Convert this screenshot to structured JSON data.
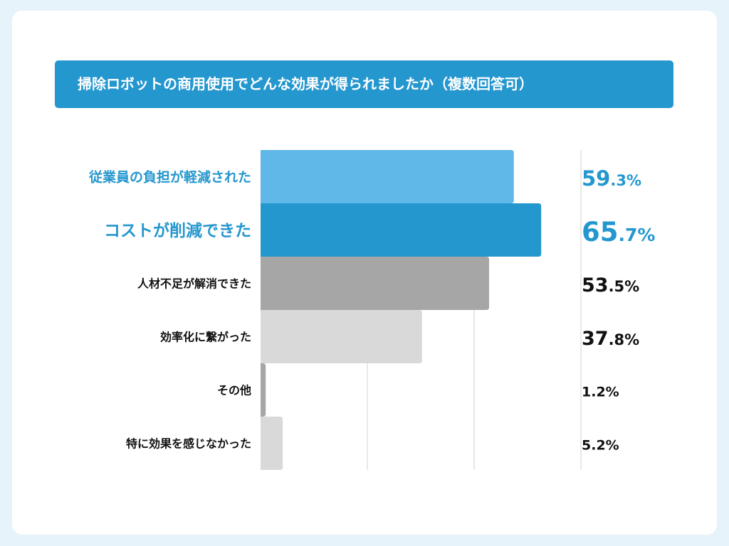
{
  "chart_data": {
    "type": "bar",
    "orientation": "horizontal",
    "title": "掃除ロボットの商用使用でどんな効果が得られましたか（複数回答可）",
    "categories": [
      "従業員の負担が軽減された",
      "コストが削減できた",
      "人材不足が解消できた",
      "効率化に繋がった",
      "その他",
      "特に効果を感じなかった"
    ],
    "values": [
      59.3,
      65.7,
      53.5,
      37.8,
      1.2,
      5.2
    ],
    "value_labels": [
      "59.3%",
      "65.7%",
      "53.5%",
      "37.8%",
      "1.2%",
      "5.2%"
    ],
    "xlim": [
      0,
      75
    ],
    "gridlines": [
      25,
      50,
      75
    ],
    "grid": true,
    "colors": [
      "#5fb8e8",
      "#2597cf",
      "#a6a6a6",
      "#d9d9d9",
      "#a6a6a6",
      "#d9d9d9"
    ],
    "label_colors": [
      "#2597cf",
      "#2597cf",
      "#111111",
      "#111111",
      "#111111",
      "#111111"
    ]
  }
}
